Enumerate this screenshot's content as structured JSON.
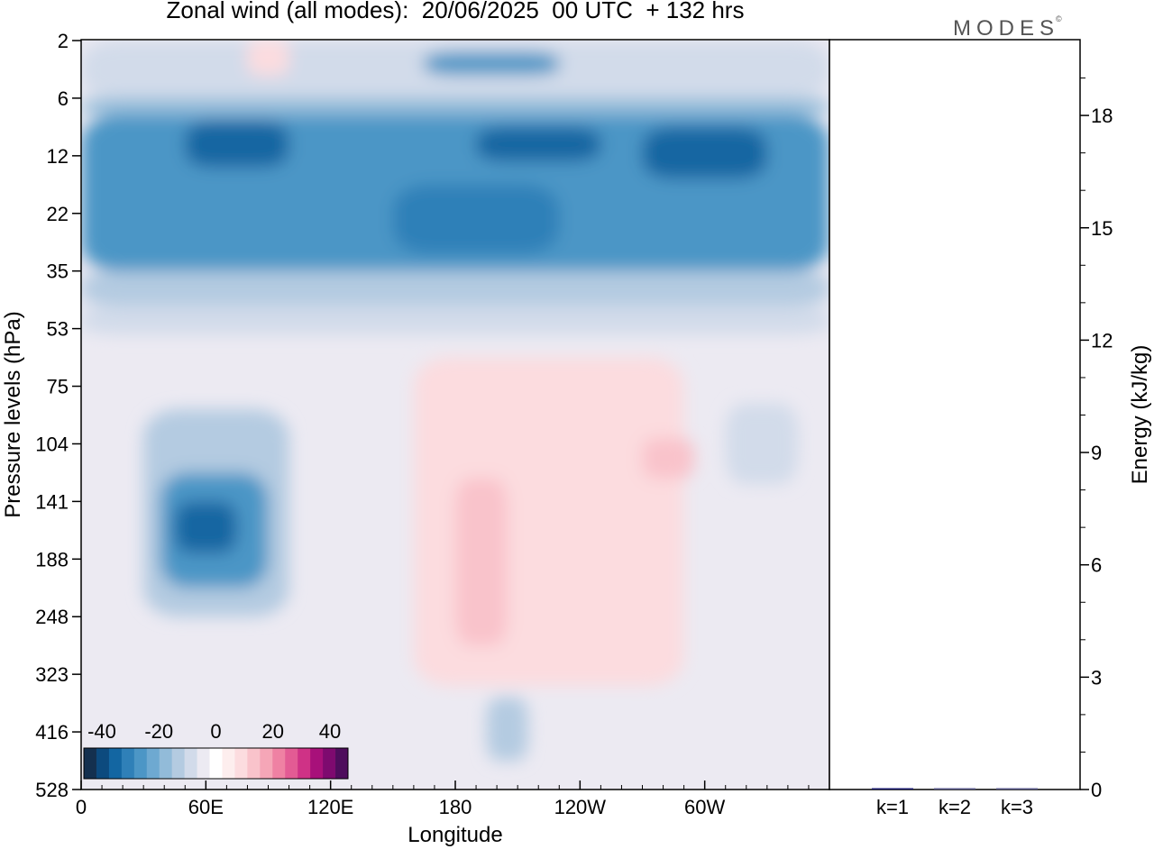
{
  "title": "Zonal wind (all modes):  20/06/2025  00 UTC  + 132 hrs",
  "logo": "MODES",
  "logo_mark": "©",
  "chart_data": [
    {
      "type": "heatmap",
      "title": "Zonal wind (all modes):  20/06/2025  00 UTC  + 132 hrs",
      "xlabel": "Longitude",
      "ylabel": "Pressure levels (hPa)",
      "x_ticks": [
        "0",
        "60E",
        "120E",
        "180",
        "120W",
        "60W"
      ],
      "x_tick_values": [
        0,
        60,
        120,
        180,
        240,
        300
      ],
      "xlim": [
        0,
        360
      ],
      "y_ticks": [
        "2",
        "6",
        "12",
        "22",
        "35",
        "53",
        "75",
        "104",
        "141",
        "188",
        "248",
        "323",
        "416",
        "528"
      ],
      "colorbar": {
        "ticks": [
          "-40",
          "-20",
          "0",
          "20",
          "40"
        ],
        "range": [
          -40,
          40
        ],
        "colors": [
          "#14304f",
          "#0c4a7e",
          "#1366a2",
          "#2f80b8",
          "#4c96c6",
          "#6ea9d1",
          "#92bbd9",
          "#b4cbe1",
          "#d2dbea",
          "#eceaf2",
          "#ffffff",
          "#fdeeee",
          "#fcdcdf",
          "#f9c3cb",
          "#f5a6b7",
          "#ef81a3",
          "#e35b94",
          "#cf3286",
          "#a8107a",
          "#7e0a6f",
          "#4e0d5c"
        ]
      },
      "regions": [
        {
          "x0": 0,
          "x1": 360,
          "y0": 0,
          "y1": 1,
          "value": -8
        },
        {
          "x0": 0,
          "x1": 360,
          "y0": 1,
          "y1": 1.3,
          "value": -18
        },
        {
          "x0": 0,
          "x1": 360,
          "y0": 1.3,
          "y1": 4,
          "value": -26
        },
        {
          "x0": 50,
          "x1": 100,
          "y0": 1.4,
          "y1": 2.2,
          "value": -32
        },
        {
          "x0": 190,
          "x1": 250,
          "y0": 1.5,
          "y1": 2.1,
          "value": -32
        },
        {
          "x0": 270,
          "x1": 330,
          "y0": 1.5,
          "y1": 2.4,
          "value": -32
        },
        {
          "x0": 150,
          "x1": 230,
          "y0": 2.5,
          "y1": 3.7,
          "value": -28
        },
        {
          "x0": 0,
          "x1": 360,
          "y0": 4,
          "y1": 4.6,
          "value": -14
        },
        {
          "x0": 0,
          "x1": 360,
          "y0": 4.6,
          "y1": 5.1,
          "value": -8
        },
        {
          "x0": 30,
          "x1": 100,
          "y0": 6.4,
          "y1": 10,
          "value": -14
        },
        {
          "x0": 38,
          "x1": 90,
          "y0": 7.5,
          "y1": 9.5,
          "value": -24
        },
        {
          "x0": 45,
          "x1": 75,
          "y0": 8,
          "y1": 8.9,
          "value": -32
        },
        {
          "x0": 160,
          "x1": 290,
          "y0": 5.5,
          "y1": 11.2,
          "value": 6
        },
        {
          "x0": 180,
          "x1": 205,
          "y0": 7.6,
          "y1": 10.5,
          "value": 12
        },
        {
          "x0": 270,
          "x1": 295,
          "y0": 6.9,
          "y1": 7.6,
          "value": 12
        },
        {
          "x0": 310,
          "x1": 345,
          "y0": 6.3,
          "y1": 7.7,
          "value": -10
        },
        {
          "x0": 195,
          "x1": 215,
          "y0": 11.4,
          "y1": 12.5,
          "value": -12
        },
        {
          "x0": 80,
          "x1": 100,
          "y0": 0,
          "y1": 0.6,
          "value": 6
        },
        {
          "x0": 165,
          "x1": 230,
          "y0": 0.2,
          "y1": 0.6,
          "value": -24
        }
      ]
    },
    {
      "type": "bar",
      "ylabel": "Energy (kJ/kg)",
      "categories": [
        "k=1",
        "k=2",
        "k=3"
      ],
      "values": [
        0.03,
        0.01,
        0.01
      ],
      "ylim": [
        0,
        20
      ],
      "y_ticks": [
        "0",
        "3",
        "6",
        "9",
        "12",
        "15",
        "18"
      ]
    }
  ]
}
